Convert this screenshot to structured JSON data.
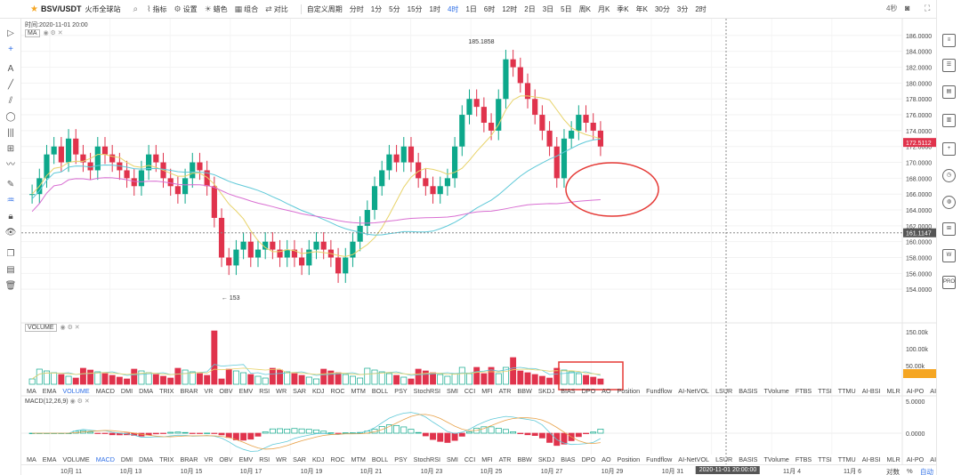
{
  "toolbar": {
    "pair": "BSV/USDT",
    "exchange": "火币全球站",
    "items": [
      {
        "label": "指标",
        "icon": "indicator-icon",
        "glyph": "⌇"
      },
      {
        "label": "设置",
        "icon": "settings-icon",
        "glyph": "⚙"
      },
      {
        "label": "蜡色",
        "icon": "theme-icon",
        "glyph": "☀"
      },
      {
        "label": "组合",
        "icon": "combine-icon",
        "glyph": "▦"
      },
      {
        "label": "对比",
        "icon": "compare-icon",
        "glyph": "⇄"
      }
    ],
    "custom_period": "自定义周期",
    "intervals": [
      "分时",
      "1分",
      "5分",
      "15分",
      "1时",
      "4时",
      "1日",
      "6时",
      "12时",
      "2日",
      "3日",
      "5日",
      "周K",
      "月K",
      "季K",
      "年K",
      "30分",
      "3分",
      "2时"
    ],
    "active_interval": "4时",
    "right_label": "4秒"
  },
  "chart": {
    "time_label": "时间:2020-11-01 20:00",
    "main_indicator": "MA",
    "volume_indicator": "VOLUME",
    "macd_label": "MACD(12,26,9)",
    "high_annotation": "185.1858",
    "low_annotation": "153",
    "current_price": "172.5112",
    "crosshair_price": "161.1147",
    "price_axis": [
      "186.0000",
      "184.0000",
      "182.0000",
      "180.0000",
      "178.0000",
      "176.0000",
      "174.0000",
      "172.0000",
      "170.0000",
      "168.0000",
      "166.0000",
      "164.0000",
      "162.0000",
      "160.0000",
      "158.0000",
      "156.0000",
      "154.0000"
    ],
    "volume_axis": [
      "150.00k",
      "100.00k",
      "50.00k",
      "20.0k"
    ],
    "macd_axis": [
      "5.0000",
      "0.0000"
    ],
    "accent_color": "#2f6fe6",
    "up_color": "#0da88b",
    "down_color": "#e0334c"
  },
  "indicators": [
    "MA",
    "EMA",
    "VOLUME",
    "MACD",
    "DMI",
    "DMA",
    "TRIX",
    "BRAR",
    "VR",
    "OBV",
    "EMV",
    "RSI",
    "WR",
    "SAR",
    "KDJ",
    "ROC",
    "MTM",
    "BOLL",
    "PSY",
    "StochRSI",
    "SMI",
    "CCI",
    "MFI",
    "ATR",
    "BBW",
    "SKDJ",
    "BIAS",
    "DPO",
    "AO",
    "Position",
    "Fundflow",
    "AI-NetVOL",
    "LSUR",
    "BASIS",
    "TVolume",
    "FTBS",
    "TTSI",
    "TTMU",
    "AI-BSI",
    "MLR",
    "AI-PO",
    "AI-FDI",
    "AI-LI",
    "FR",
    "AI-BST"
  ],
  "indicators_bottom": [
    "MA",
    "EMA",
    "VOLUME",
    "MACD",
    "DMI",
    "DMA",
    "TRIX",
    "BRAR",
    "VR",
    "OBV",
    "EMV",
    "RSI",
    "WR",
    "SAR",
    "KDJ",
    "ROC",
    "MTM",
    "BOLL",
    "PSY",
    "StochRSI",
    "SMI",
    "CCI",
    "MFI",
    "ATR",
    "BBW",
    "SKDJ",
    "BIAS",
    "DPO",
    "AO",
    "Position",
    "Fundflow",
    "AI-NetVOL",
    "LSUR",
    "BASIS",
    "TVolume",
    "FTBS",
    "TTSI",
    "TTMU",
    "AI-BSI",
    "MLR",
    "AI-PO",
    "AI-FDI",
    "AI-LI",
    "FR",
    "AI-BST"
  ],
  "footer": {
    "dates": [
      "10月 11",
      "10月 13",
      "10月 15",
      "10月 17",
      "10月 19",
      "10月 21",
      "10月 23",
      "10月 25",
      "10月 27",
      "10月 29",
      "10月 31",
      "11月 4",
      "11月 6"
    ],
    "crosshair_date": "2020-11-01 20:00:00",
    "log_label": "对数",
    "pct_label": "%",
    "auto_label": "自动"
  },
  "chart_data": {
    "type": "candlestick",
    "pair": "BSV/USDT",
    "interval": "4h",
    "x_range": [
      "2020-10-10",
      "2020-11-07"
    ],
    "ylim": [
      152,
      187
    ],
    "candles": [],
    "volume_axis_max": 150000,
    "overlays": [
      "MA yellow",
      "MA cyan",
      "MA magenta"
    ]
  }
}
